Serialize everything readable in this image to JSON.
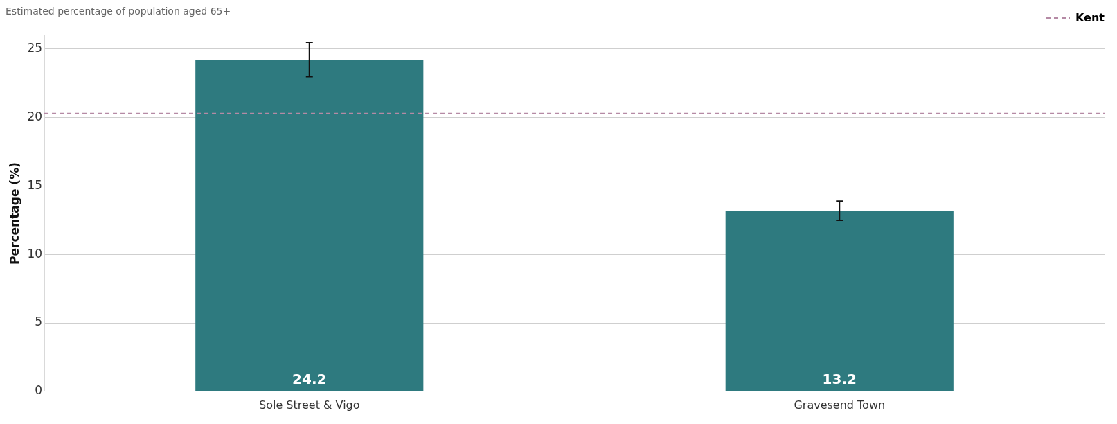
{
  "chart_data": {
    "type": "bar",
    "subtitle": "Estimated percentage of population aged 65+",
    "ylabel": "Percentage (%)",
    "categories": [
      "Sole Street & Vigo",
      "Gravesend Town"
    ],
    "values": [
      24.2,
      13.2
    ],
    "color": "#2e7a7f",
    "errors": [
      [
        23.0,
        25.5
      ],
      [
        12.5,
        13.9
      ]
    ],
    "ylim": [
      0,
      26
    ],
    "yticks": [
      0,
      5,
      10,
      15,
      20,
      25
    ],
    "grid": "y",
    "data_labels": true,
    "legend": "top right",
    "ref_lines": [
      {
        "axis": "y",
        "value": 20.3,
        "label": "Kent",
        "color": "#b58aa5",
        "line_style": "dashed"
      }
    ]
  }
}
